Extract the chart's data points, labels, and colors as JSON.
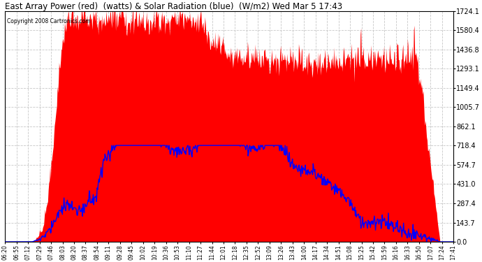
{
  "title": "East Array Power (red)  (watts) & Solar Radiation (blue)  (W/m2) Wed Mar 5 17:43",
  "copyright": "Copyright 2008 Cartronics.com",
  "x_labels": [
    "06:20",
    "06:55",
    "07:12",
    "07:29",
    "07:46",
    "08:03",
    "08:20",
    "08:37",
    "08:54",
    "09:11",
    "09:28",
    "09:45",
    "10:02",
    "10:19",
    "10:36",
    "10:53",
    "11:10",
    "11:27",
    "11:44",
    "12:01",
    "12:18",
    "12:35",
    "12:52",
    "13:09",
    "13:26",
    "13:43",
    "14:00",
    "14:17",
    "14:34",
    "14:51",
    "15:08",
    "15:25",
    "15:42",
    "15:59",
    "16:16",
    "16:33",
    "16:50",
    "17:07",
    "17:24",
    "17:41"
  ],
  "y_ticks": [
    0.0,
    143.7,
    287.4,
    431.0,
    574.7,
    718.4,
    862.1,
    1005.7,
    1149.4,
    1293.1,
    1436.8,
    1580.4,
    1724.1
  ],
  "y_max": 1724.1,
  "y_min": 0.0,
  "background_color": "#ffffff",
  "plot_bg_color": "#ffffff",
  "grid_color": "#c8c8c8",
  "red_color": "#ff0000",
  "blue_color": "#0000ff",
  "n_points": 800
}
